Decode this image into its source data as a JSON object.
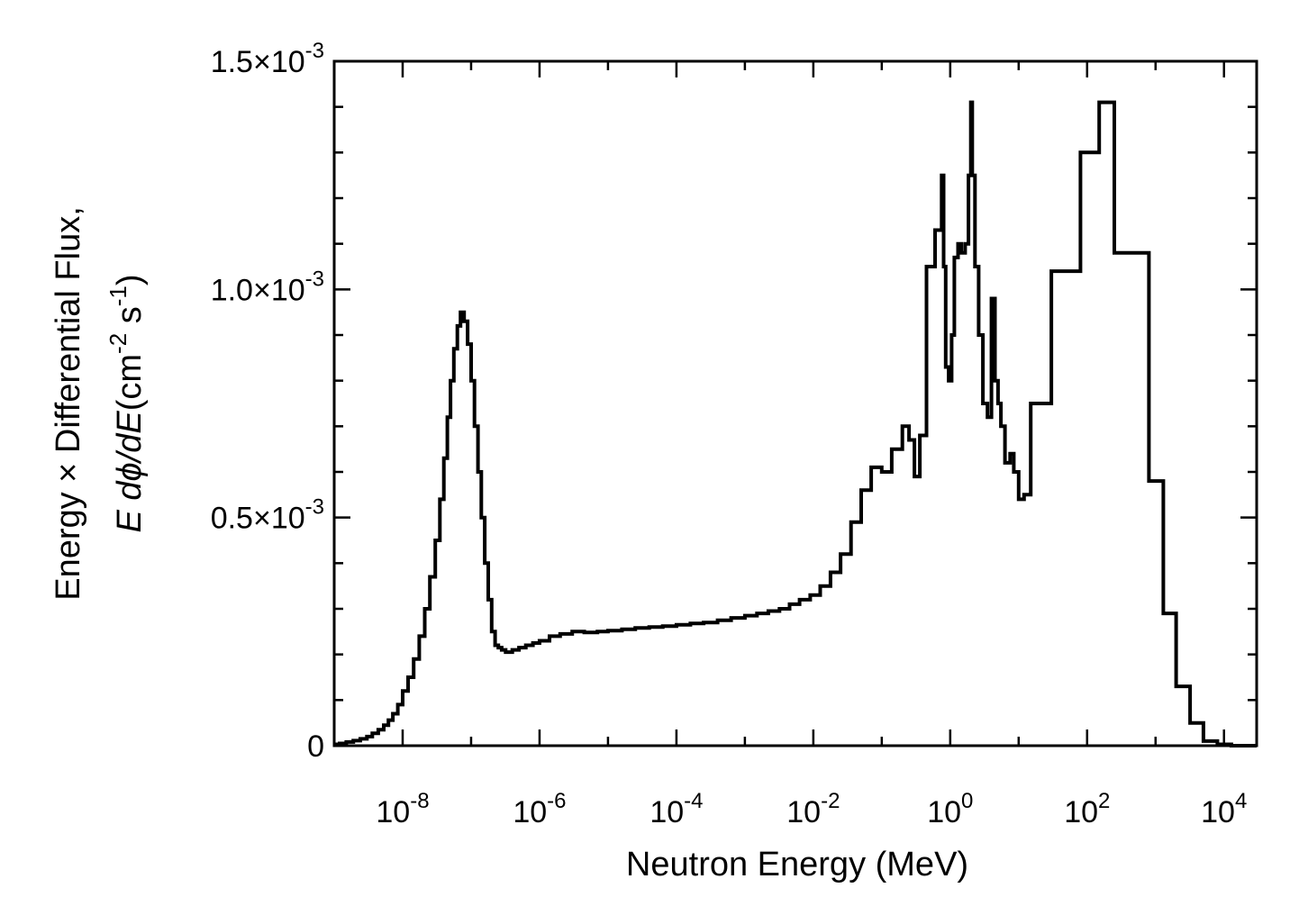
{
  "chart_data": {
    "type": "line",
    "title": "",
    "xlabel": "Neutron Energy  (MeV)",
    "ylabel": {
      "line1": "Energy × Differential Flux,",
      "line2_prefix_italic": "E dϕ/dE",
      "line2_units_prefix": "(cm",
      "line2_units_exp1": "-2",
      "line2_units_mid": " s",
      "line2_units_exp2": "-1",
      "line2_units_suffix": ")"
    },
    "x_scale": "log",
    "xlim": [
      1e-09,
      30000
    ],
    "ylim": [
      0,
      0.0015
    ],
    "grid": false,
    "legend": "none",
    "line_color": "#000000",
    "x_ticks": [
      {
        "value": 1e-08,
        "base": "10",
        "exp": "-8"
      },
      {
        "value": 1e-06,
        "base": "10",
        "exp": "-6"
      },
      {
        "value": 0.0001,
        "base": "10",
        "exp": "-4"
      },
      {
        "value": 0.01,
        "base": "10",
        "exp": "-2"
      },
      {
        "value": 1,
        "base": "10",
        "exp": "0"
      },
      {
        "value": 100,
        "base": "10",
        "exp": "2"
      },
      {
        "value": 10000,
        "base": "10",
        "exp": "4"
      }
    ],
    "y_ticks": [
      {
        "value": 0,
        "mantissa": "0",
        "exp": ""
      },
      {
        "value": 0.0005,
        "mantissa": "0.5×10",
        "exp": "-3"
      },
      {
        "value": 0.001,
        "mantissa": "1.0×10",
        "exp": "-3"
      },
      {
        "value": 0.0015,
        "mantissa": "1.5×10",
        "exp": "-3"
      }
    ],
    "series": [
      {
        "style": "step",
        "x": [
          1e-09,
          1.2e-09,
          1.5e-09,
          1.9e-09,
          2.4e-09,
          3e-09,
          3.6e-09,
          4.4e-09,
          5.3e-09,
          6.2e-09,
          7.2e-09,
          8.5e-09,
          1e-08,
          1.2e-08,
          1.45e-08,
          1.75e-08,
          2.1e-08,
          2.5e-08,
          3e-08,
          3.5e-08,
          4e-08,
          4.5e-08,
          5e-08,
          5.6e-08,
          6.3e-08,
          7e-08,
          7.9e-08,
          8.9e-08,
          1e-07,
          1.12e-07,
          1.26e-07,
          1.41e-07,
          1.58e-07,
          1.78e-07,
          2e-07,
          2.24e-07,
          2.5e-07,
          2.8e-07,
          3.2e-07,
          4e-07,
          5e-07,
          6.3e-07,
          8e-07,
          1e-06,
          1.4e-06,
          2e-06,
          3e-06,
          4.5e-06,
          7e-06,
          1e-05,
          1.6e-05,
          2.5e-05,
          4e-05,
          6.3e-05,
          0.0001,
          0.00016,
          0.00025,
          0.0004,
          0.00063,
          0.001,
          0.0015,
          0.0022,
          0.0032,
          0.0045,
          0.0063,
          0.009,
          0.0126,
          0.0178,
          0.025,
          0.0355,
          0.05,
          0.07,
          0.1,
          0.14,
          0.2,
          0.25,
          0.3,
          0.36,
          0.45,
          0.6,
          0.75,
          0.8,
          0.86,
          0.95,
          1.05,
          1.15,
          1.3,
          1.45,
          1.65,
          1.85,
          2.0,
          2.1,
          2.3,
          2.6,
          3.0,
          3.5,
          4.0,
          4.5,
          5.0,
          5.5,
          6.3,
          7.5,
          8.5,
          10,
          12,
          15,
          20,
          30,
          50,
          80,
          150,
          250,
          500,
          800,
          1300,
          2000,
          3200,
          5000,
          8000
        ],
        "y": [
          3e-06,
          5e-06,
          8e-06,
          1.1e-05,
          1.5e-05,
          2e-05,
          2.7e-05,
          3.5e-05,
          4.5e-05,
          5.6e-05,
          7e-05,
          9e-05,
          0.00012,
          0.00015,
          0.00019,
          0.00024,
          0.0003,
          0.00037,
          0.00045,
          0.00054,
          0.00063,
          0.00072,
          0.0008,
          0.00087,
          0.00092,
          0.00095,
          0.00093,
          0.00088,
          0.0008,
          0.0007,
          0.0006,
          0.0005,
          0.0004,
          0.00032,
          0.00025,
          0.00022,
          0.000215,
          0.00021,
          0.000205,
          0.00021,
          0.000215,
          0.00022,
          0.000225,
          0.00023,
          0.00024,
          0.000245,
          0.00025,
          0.000248,
          0.00025,
          0.000252,
          0.000255,
          0.000258,
          0.00026,
          0.000262,
          0.000265,
          0.000268,
          0.00027,
          0.000275,
          0.00028,
          0.000285,
          0.00029,
          0.000295,
          0.0003,
          0.00031,
          0.00032,
          0.00033,
          0.00035,
          0.00038,
          0.00042,
          0.00049,
          0.00056,
          0.00061,
          0.0006,
          0.00065,
          0.0007,
          0.00067,
          0.00059,
          0.00068,
          0.00105,
          0.00113,
          0.00125,
          0.00105,
          0.00083,
          0.0008,
          0.0009,
          0.00107,
          0.0011,
          0.00108,
          0.0011,
          0.00125,
          0.00141,
          0.00125,
          0.00105,
          0.0009,
          0.00075,
          0.00072,
          0.00098,
          0.0008,
          0.00075,
          0.0007,
          0.00062,
          0.00064,
          0.0006,
          0.00054,
          0.00055,
          0.00075,
          0.00075,
          0.00104,
          0.00104,
          0.0013,
          0.00141,
          0.00108,
          0.00108,
          0.00058,
          0.00029,
          0.00013,
          5e-05,
          1e-05,
          3e-06
        ]
      }
    ]
  }
}
